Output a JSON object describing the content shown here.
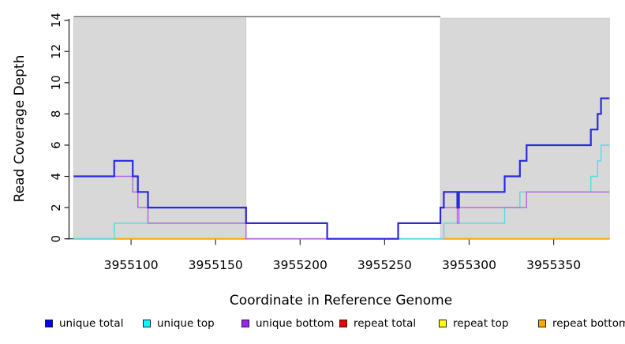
{
  "chart_data": {
    "type": "line",
    "subtype": "step-coverage",
    "title": "",
    "xlabel": "Coordinate in Reference Genome",
    "ylabel": "Read Coverage Depth",
    "xlim": [
      3955066,
      3955383
    ],
    "ylim": [
      0,
      14
    ],
    "x_ticks": [
      3955100,
      3955150,
      3955200,
      3955250,
      3955300,
      3955350
    ],
    "y_ticks": [
      0,
      2,
      4,
      6,
      8,
      10,
      12,
      14
    ],
    "grid": false,
    "shaded_regions": [
      {
        "name": "left-gray-region",
        "x0": 3955066,
        "x1": 3955168,
        "color": "#d8d8d8"
      },
      {
        "name": "right-gray-region",
        "x0": 3955283,
        "x1": 3955383,
        "color": "#d8d8d8"
      }
    ],
    "series": [
      {
        "name": "repeat total",
        "color": "#ee0000",
        "lw": 1.2,
        "steps": [
          [
            3955066,
            0
          ]
        ]
      },
      {
        "name": "repeat top",
        "color": "#ffff00",
        "lw": 1.2,
        "steps": [
          [
            3955066,
            0
          ]
        ]
      },
      {
        "name": "repeat bottom",
        "color": "#ffa500",
        "lw": 1.8,
        "steps": [
          [
            3955066,
            0
          ]
        ]
      },
      {
        "name": "unique top",
        "color": "#52dce3",
        "lw": 1.4,
        "steps": [
          [
            3955066,
            0
          ],
          [
            3955090,
            1
          ],
          [
            3955216,
            0
          ],
          [
            3955285,
            1
          ],
          [
            3955321,
            2
          ],
          [
            3955330,
            3
          ],
          [
            3955372,
            4
          ],
          [
            3955376,
            5
          ],
          [
            3955378,
            6
          ]
        ]
      },
      {
        "name": "unique bottom",
        "color": "#b065e0",
        "lw": 1.4,
        "steps": [
          [
            3955066,
            4
          ],
          [
            3955101,
            3
          ],
          [
            3955104,
            2
          ],
          [
            3955110,
            1
          ],
          [
            3955168,
            0
          ],
          [
            3955258,
            1
          ],
          [
            3955283,
            2
          ],
          [
            3955293,
            1
          ],
          [
            3955294,
            2
          ],
          [
            3955334,
            3
          ]
        ]
      },
      {
        "name": "unique total",
        "color": "#2a29e0",
        "lw": 2.2,
        "steps": [
          [
            3955066,
            4
          ],
          [
            3955090,
            5
          ],
          [
            3955101,
            4
          ],
          [
            3955104,
            3
          ],
          [
            3955110,
            2
          ],
          [
            3955168,
            1
          ],
          [
            3955216,
            0
          ],
          [
            3955258,
            1
          ],
          [
            3955283,
            2
          ],
          [
            3955285,
            3
          ],
          [
            3955293,
            2
          ],
          [
            3955294,
            3
          ],
          [
            3955321,
            4
          ],
          [
            3955330,
            5
          ],
          [
            3955334,
            6
          ],
          [
            3955372,
            7
          ],
          [
            3955376,
            8
          ],
          [
            3955378,
            9
          ]
        ]
      }
    ]
  },
  "legend": {
    "items": [
      {
        "label": "unique total",
        "color": "#0000ee"
      },
      {
        "label": "unique top",
        "color": "#00ffff"
      },
      {
        "label": "unique bottom",
        "color": "#a020f0"
      },
      {
        "label": "repeat total",
        "color": "#ee0000"
      },
      {
        "label": "repeat top",
        "color": "#ffff00"
      },
      {
        "label": "repeat bottom",
        "color": "#ffa500"
      }
    ]
  }
}
